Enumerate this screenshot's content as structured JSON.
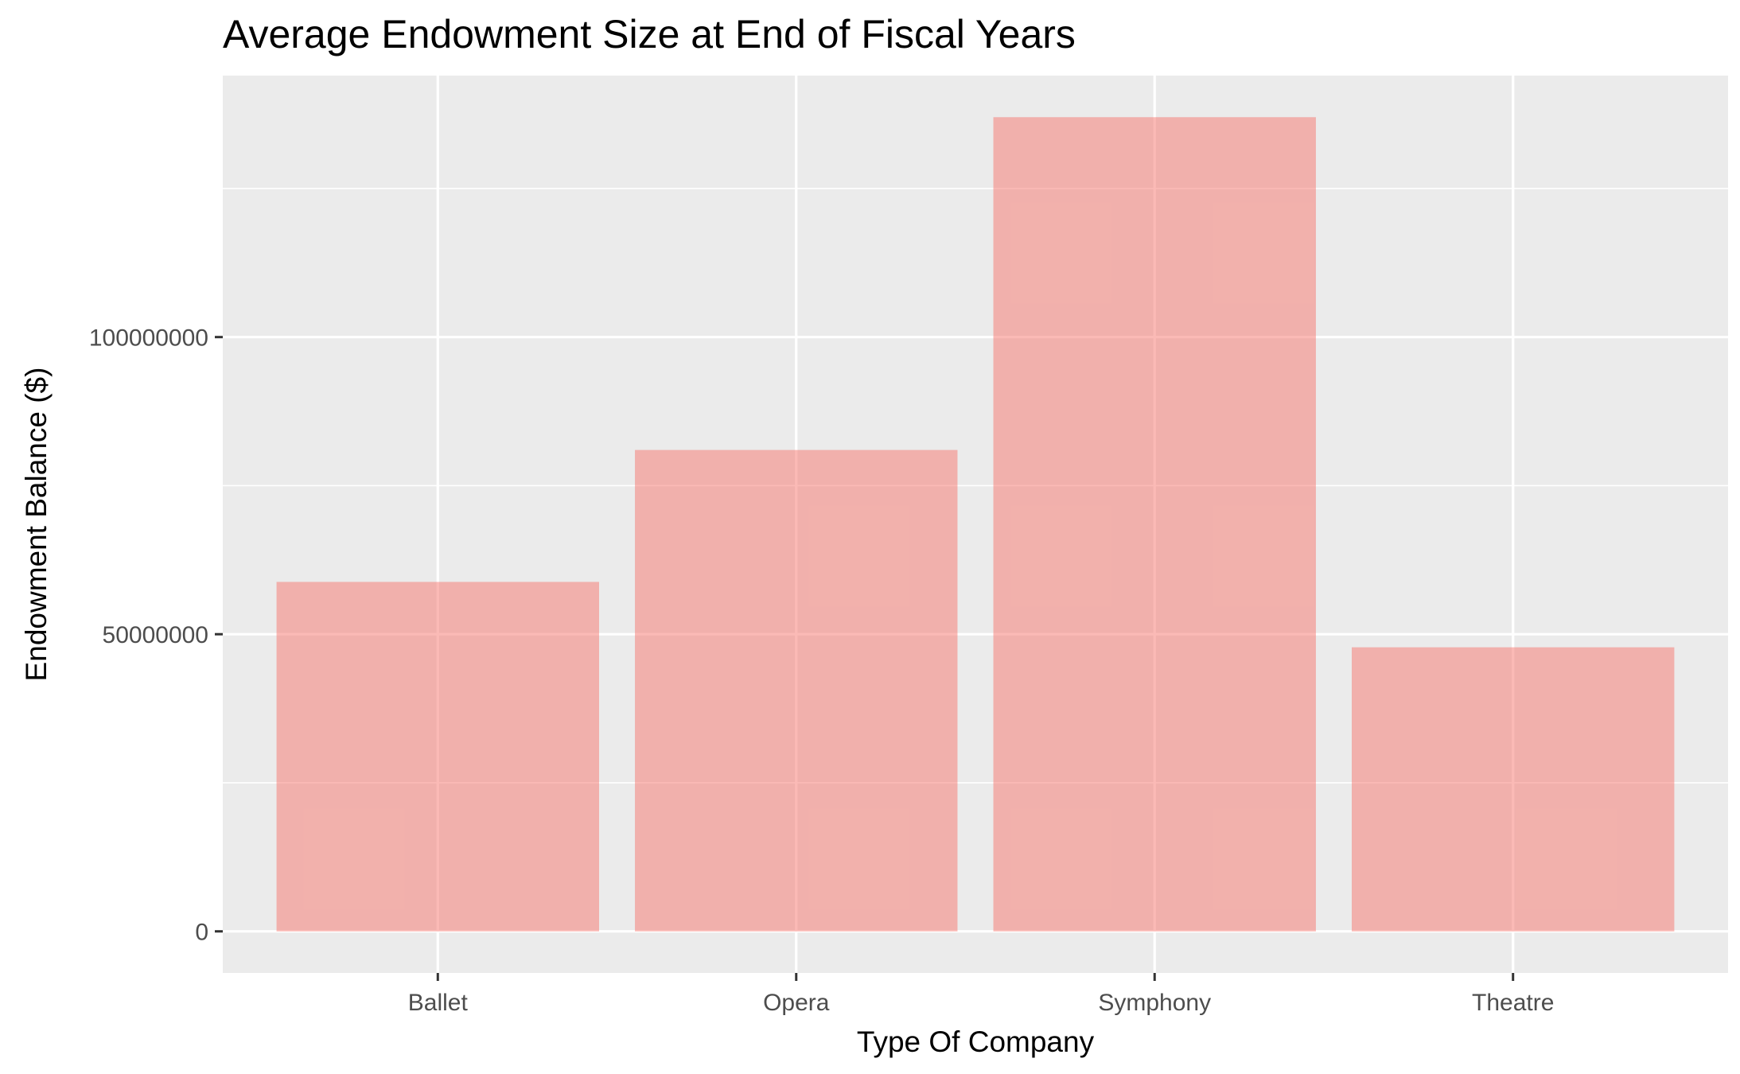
{
  "chart_data": {
    "type": "bar",
    "title": "Average Endowment Size at End of Fiscal Years",
    "xlabel": "Type Of Company",
    "ylabel": "Endowment Balance ($)",
    "categories": [
      "Ballet",
      "Opera",
      "Symphony",
      "Theatre"
    ],
    "values": [
      58800000,
      81000000,
      137000000,
      47800000
    ],
    "ylim": [
      -7000000,
      144000000
    ],
    "yticks": [
      0,
      50000000,
      100000000
    ],
    "ytick_labels": [
      "0",
      "50000000",
      "100000000"
    ],
    "grid": true,
    "legend": "none",
    "colors": {
      "bar": "#f8766d",
      "bar_fill_opacity": 0.5,
      "panel_background": "#ebebeb",
      "grid_line": "#ffffff"
    }
  }
}
